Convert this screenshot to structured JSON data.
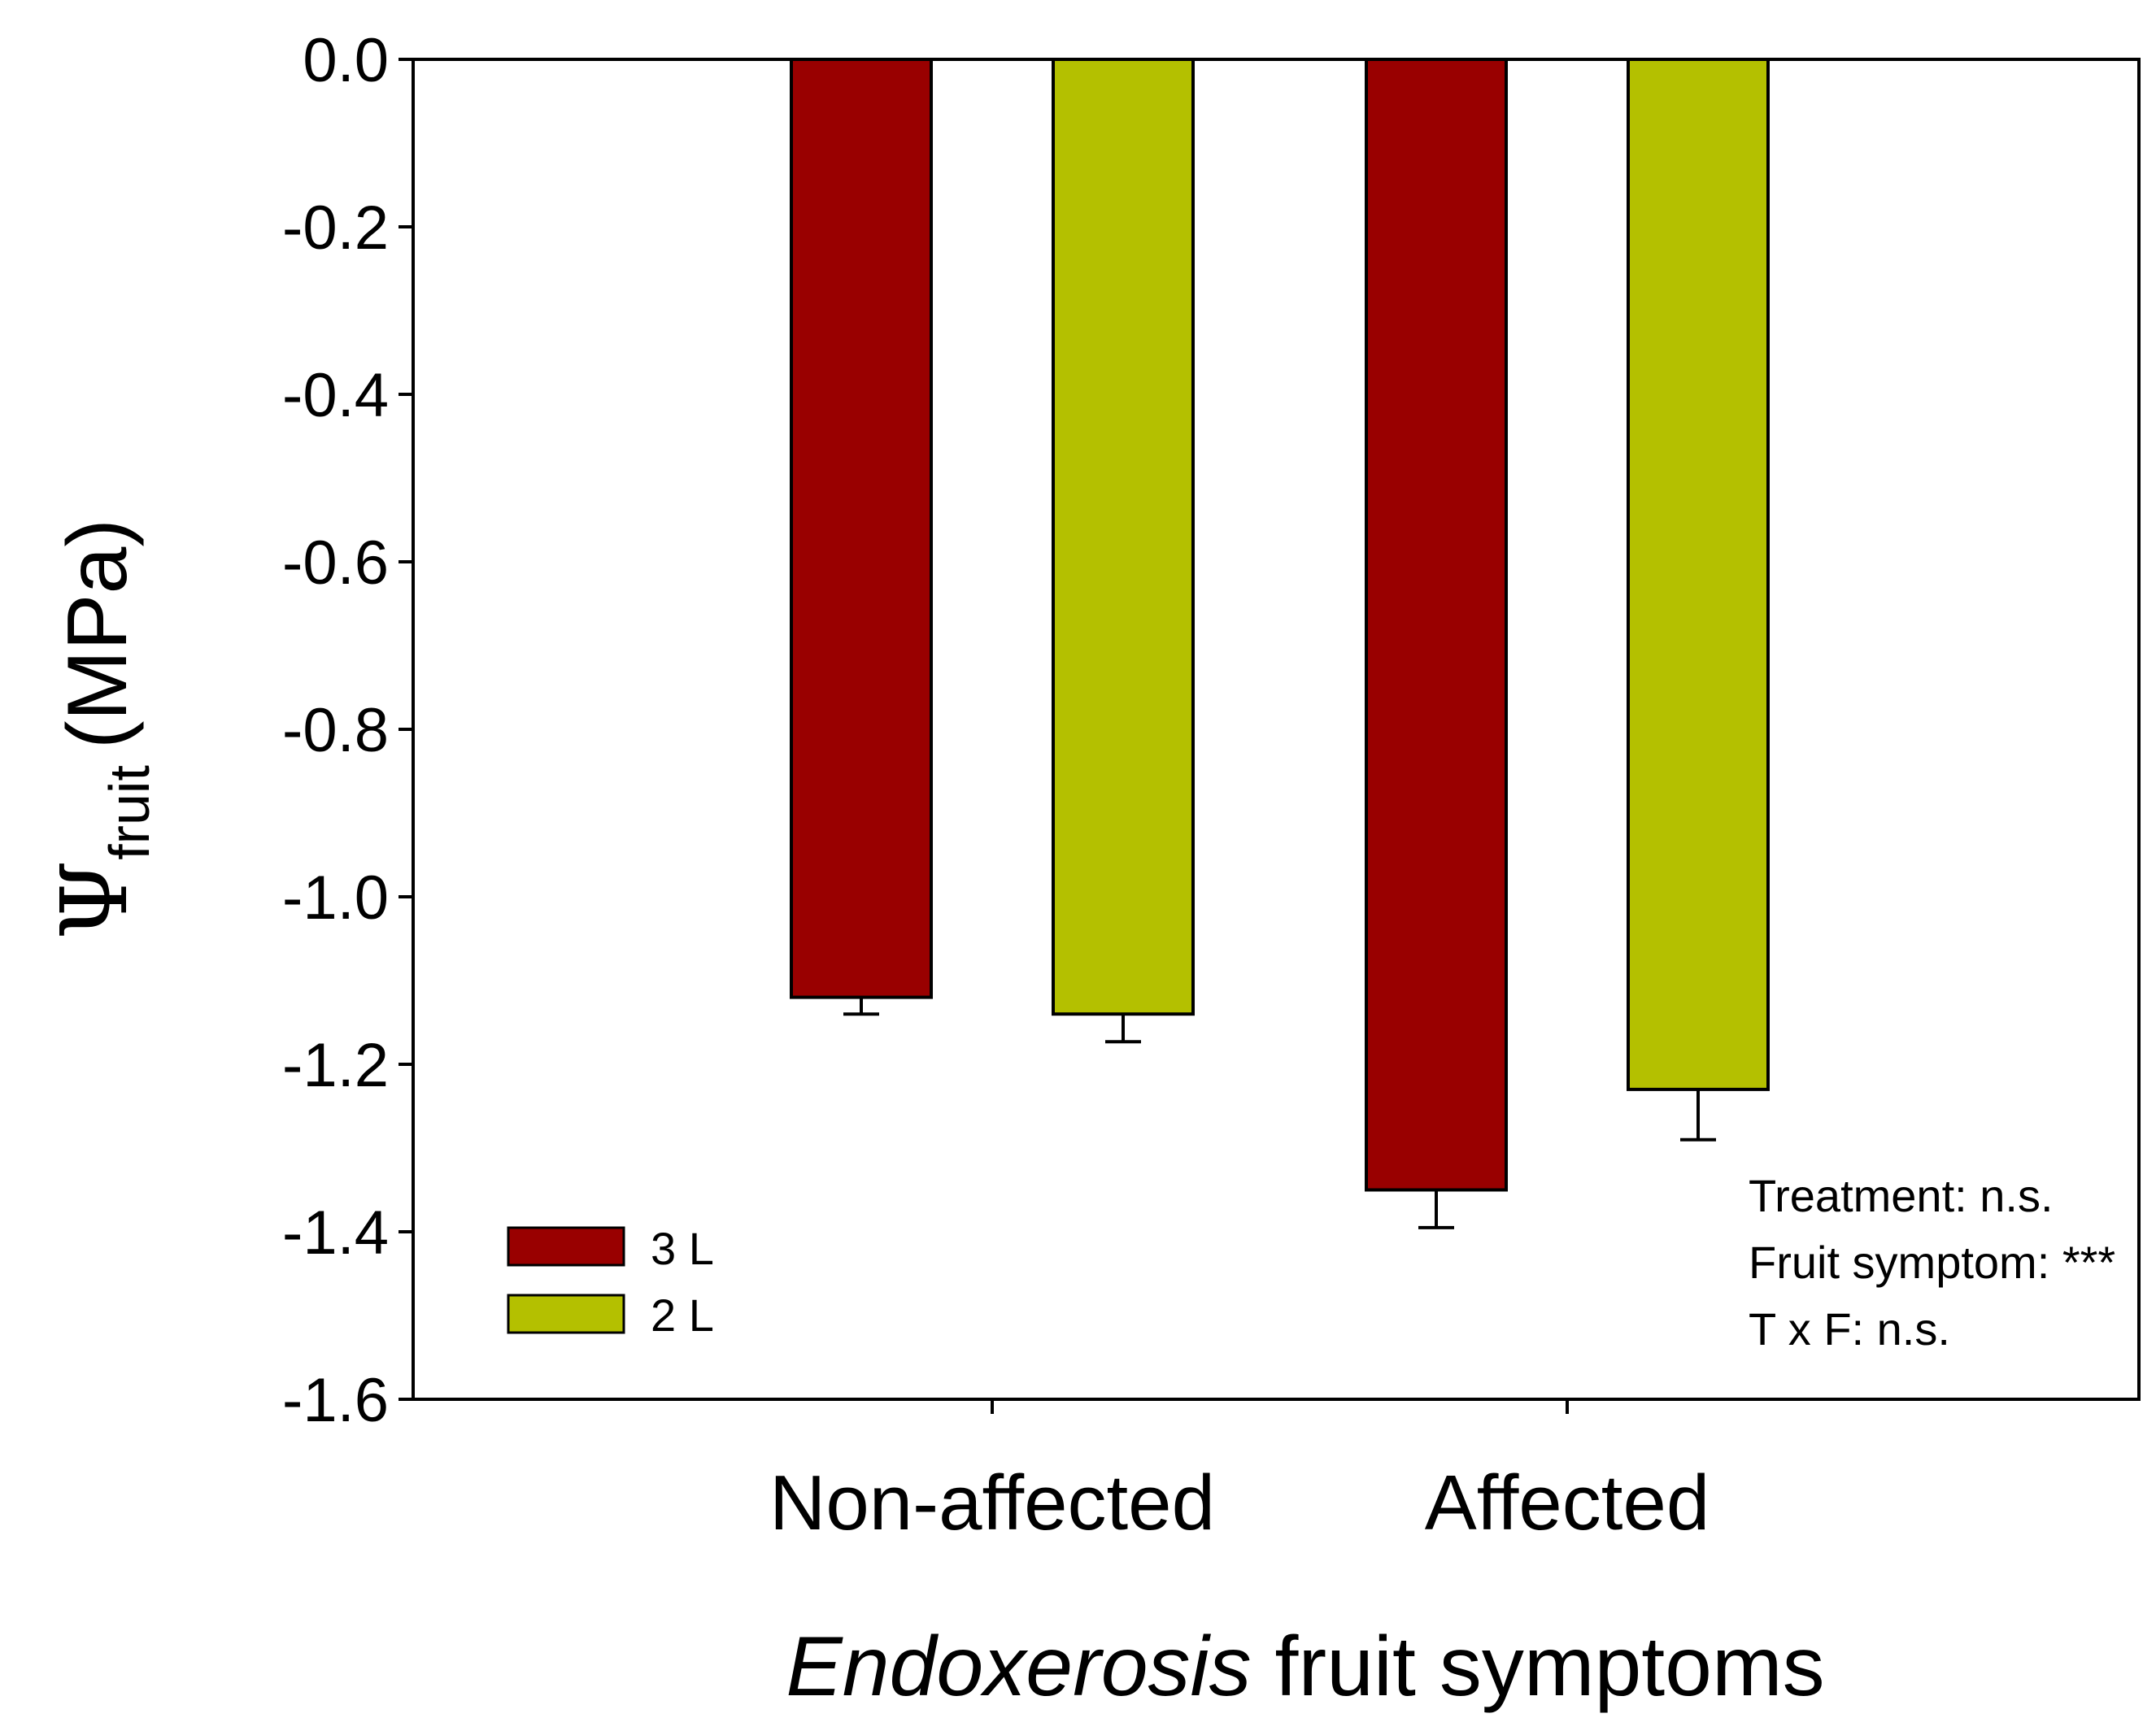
{
  "colors": {
    "series_3L": "#990000",
    "series_2L": "#b4c000",
    "axis": "#000000"
  },
  "chart_data": {
    "type": "bar",
    "title": "",
    "categories": [
      "Non-affected",
      "Affected"
    ],
    "series": [
      {
        "name": "3 L",
        "values": [
          -1.12,
          -1.35
        ],
        "errors": [
          0.02,
          0.045
        ]
      },
      {
        "name": "2 L",
        "values": [
          -1.14,
          -1.23
        ],
        "errors": [
          0.033,
          0.06
        ]
      }
    ],
    "ylim": [
      -1.6,
      0.0
    ],
    "yticks": [
      "0.0",
      "-0.2",
      "-0.4",
      "-0.6",
      "-0.8",
      "-1.0",
      "-1.2",
      "-1.4",
      "-1.6"
    ],
    "ylabel": {
      "symbol": "Ψ",
      "subscript": "fruit",
      "unit": "(MPa)"
    },
    "xlabel": {
      "italic": "Endoxerosis",
      "rest": " fruit symptoms"
    },
    "legend_position": "bottom-left",
    "annotations": [
      "Treatment: n.s.",
      "Fruit symptom: ***",
      "T x F: n.s."
    ]
  }
}
